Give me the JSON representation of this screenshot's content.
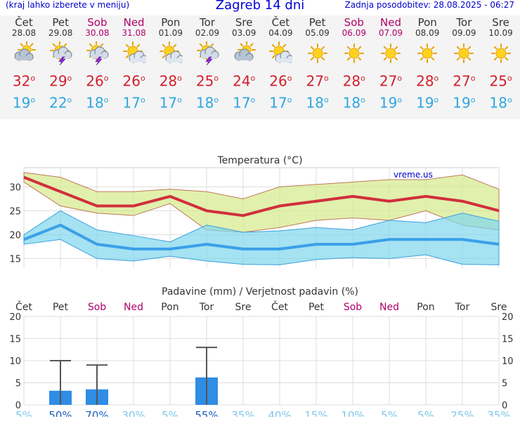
{
  "header": {
    "left": "(kraj lahko izberete v meniju)",
    "title": "Zagreb 14 dni",
    "right": "Zadnja posodobitev: 28.08.2025 - 06:27"
  },
  "colors": {
    "max_temp": "#d11f2e",
    "min_temp": "#2fa6df",
    "weekend": "#b0006a",
    "weekday": "#333333",
    "bar": "#2f8de4"
  },
  "days": [
    {
      "name": "Čet",
      "date": "28.08",
      "weekend": false,
      "icon": "cloud-sun-icon",
      "max": "32",
      "min": "19"
    },
    {
      "name": "Pet",
      "date": "29.08",
      "weekend": false,
      "icon": "storm-sun-icon",
      "max": "29",
      "min": "22"
    },
    {
      "name": "Sob",
      "date": "30.08",
      "weekend": true,
      "icon": "storm-sun-icon",
      "max": "26",
      "min": "18"
    },
    {
      "name": "Ned",
      "date": "31.08",
      "weekend": true,
      "icon": "sun-cloud-icon",
      "max": "26",
      "min": "17"
    },
    {
      "name": "Pon",
      "date": "01.09",
      "weekend": false,
      "icon": "sun-cloud-icon",
      "max": "28",
      "min": "17"
    },
    {
      "name": "Tor",
      "date": "02.09",
      "weekend": false,
      "icon": "storm-sun-icon",
      "max": "25",
      "min": "18"
    },
    {
      "name": "Sre",
      "date": "03.09",
      "weekend": false,
      "icon": "cloud-sun-icon",
      "max": "24",
      "min": "17"
    },
    {
      "name": "Čet",
      "date": "04.09",
      "weekend": false,
      "icon": "sun-cloud-icon",
      "max": "26",
      "min": "17"
    },
    {
      "name": "Pet",
      "date": "05.09",
      "weekend": false,
      "icon": "sun-icon",
      "max": "27",
      "min": "18"
    },
    {
      "name": "Sob",
      "date": "06.09",
      "weekend": true,
      "icon": "sun-icon",
      "max": "28",
      "min": "18"
    },
    {
      "name": "Ned",
      "date": "07.09",
      "weekend": true,
      "icon": "sun-icon",
      "max": "27",
      "min": "19"
    },
    {
      "name": "Pon",
      "date": "08.09",
      "weekend": false,
      "icon": "sun-icon",
      "max": "28",
      "min": "19"
    },
    {
      "name": "Tor",
      "date": "09.09",
      "weekend": false,
      "icon": "sun-icon",
      "max": "27",
      "min": "19"
    },
    {
      "name": "Sre",
      "date": "10.09",
      "weekend": false,
      "icon": "sun-icon",
      "max": "25",
      "min": "18"
    }
  ],
  "degree_symbol": "o",
  "chart_data": [
    {
      "type": "line",
      "title": "Temperatura (°C)",
      "watermark": "vreme.us",
      "grid": true,
      "ylim": [
        12,
        34
      ],
      "yticks": [
        15,
        20,
        25,
        30
      ],
      "x": [
        "28.08",
        "29.08",
        "30.08",
        "31.08",
        "01.09",
        "02.09",
        "03.09",
        "04.09",
        "05.09",
        "06.09",
        "07.09",
        "08.09",
        "09.09",
        "10.09"
      ],
      "series": [
        {
          "role": "max",
          "values": [
            32,
            29,
            26,
            26,
            28,
            25,
            24,
            26,
            27,
            28,
            27,
            28,
            27,
            25
          ]
        },
        {
          "role": "min",
          "values": [
            19,
            22,
            18,
            17,
            17,
            18,
            17,
            17,
            18,
            18,
            19,
            19,
            19,
            18
          ]
        },
        {
          "role": "max_band_upper",
          "values": [
            33,
            32,
            29,
            29,
            29.5,
            29,
            27.5,
            30,
            30.5,
            31,
            31.5,
            31.5,
            32.5,
            29.5
          ]
        },
        {
          "role": "max_band_lower",
          "values": [
            31,
            26,
            24.5,
            24,
            26.5,
            21,
            20.5,
            21.5,
            23,
            23.5,
            23,
            25,
            22,
            21
          ]
        },
        {
          "role": "min_band_upper",
          "values": [
            20,
            25,
            21,
            19.8,
            18.5,
            22,
            20.5,
            20.8,
            21.5,
            21,
            23,
            22.5,
            24.5,
            22.8
          ]
        },
        {
          "role": "min_band_lower",
          "values": [
            18,
            19,
            15,
            14.5,
            15.5,
            14.5,
            13.8,
            13.7,
            14.8,
            15.2,
            15,
            15.8,
            13.8,
            13.7
          ]
        }
      ]
    },
    {
      "type": "bar",
      "title": "Padavine (mm) / Verjetnost padavin (%)",
      "grid": true,
      "ylim": [
        0,
        20
      ],
      "yticks": [
        0,
        5,
        10,
        15,
        20
      ],
      "categories": [
        "Čet",
        "Pet",
        "Sob",
        "Ned",
        "Pon",
        "Tor",
        "Sre",
        "Čet",
        "Pet",
        "Sob",
        "Ned",
        "Pon",
        "Tor",
        "Sre"
      ],
      "values": [
        0,
        3.2,
        3.5,
        0,
        0,
        6.2,
        0,
        0,
        0,
        0,
        0,
        0,
        0,
        0
      ],
      "error_max": [
        0,
        10,
        9,
        0,
        0,
        13,
        0,
        0,
        0,
        0,
        0,
        0,
        0,
        0
      ],
      "probability": [
        "5%",
        "50%",
        "70%",
        "30%",
        "5%",
        "55%",
        "35%",
        "40%",
        "15%",
        "10%",
        "5%",
        "5%",
        "25%",
        "35%"
      ]
    }
  ]
}
